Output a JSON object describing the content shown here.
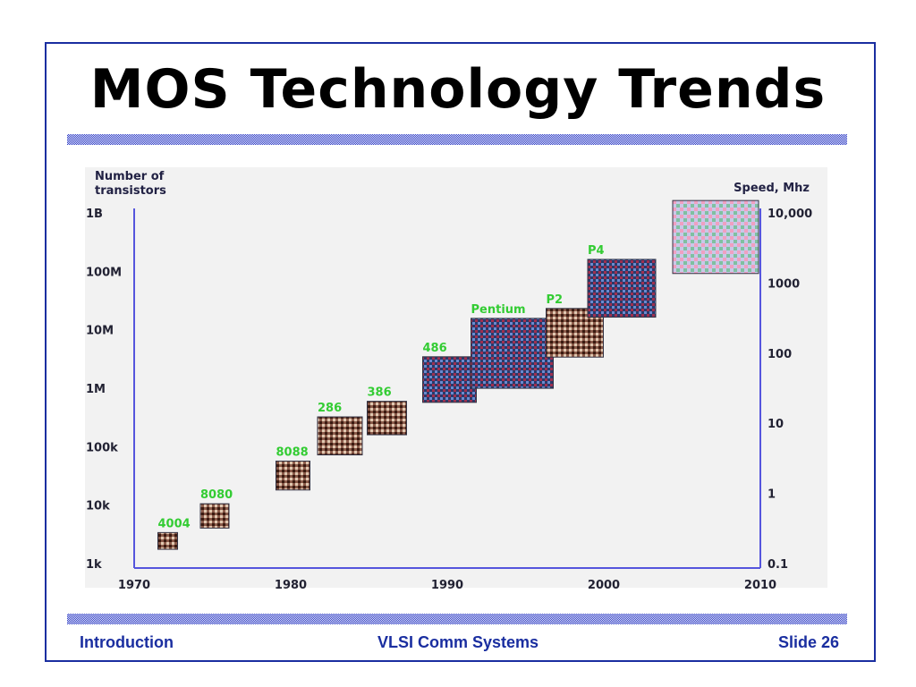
{
  "slide": {
    "title": "MOS Technology Trends",
    "footer_left": "Introduction",
    "footer_center": "VLSI Comm Systems",
    "footer_right": "Slide 26",
    "frame_color": "#1a2ea0",
    "footer_color": "#1a2ea0"
  },
  "chart_data": {
    "type": "scatter",
    "title": "",
    "xlabel": "",
    "ylabel": "Number of transistors",
    "y2label": "Speed, Mhz",
    "xlim": [
      1970,
      2010
    ],
    "x_ticks": [
      {
        "value": 1970,
        "label": "1970"
      },
      {
        "value": 1980,
        "label": "1980"
      },
      {
        "value": 1990,
        "label": "1990"
      },
      {
        "value": 2000,
        "label": "2000"
      },
      {
        "value": 2010,
        "label": "2010"
      }
    ],
    "y_scale": "log",
    "ylim": [
      1000,
      1000000000
    ],
    "y_ticks": [
      {
        "value": 1000,
        "label": "1k"
      },
      {
        "value": 10000,
        "label": "10k"
      },
      {
        "value": 100000,
        "label": "100k"
      },
      {
        "value": 1000000,
        "label": "1M"
      },
      {
        "value": 10000000,
        "label": "10M"
      },
      {
        "value": 100000000,
        "label": "100M"
      },
      {
        "value": 1000000000,
        "label": "1B"
      }
    ],
    "y2_scale": "log",
    "y2lim": [
      0.1,
      10000
    ],
    "y2_ticks": [
      {
        "value": 0.1,
        "label": "0.1"
      },
      {
        "value": 1,
        "label": "1"
      },
      {
        "value": 10,
        "label": "10"
      },
      {
        "value": 100,
        "label": "100"
      },
      {
        "value": 1000,
        "label": "1000"
      },
      {
        "value": 10000,
        "label": "10,000"
      }
    ],
    "grid": false,
    "axis_color": "#5555dd",
    "label_color": "#33cc33",
    "series": [
      {
        "points": [
          {
            "label": "4004",
            "year": 1971,
            "transistors": 2300
          },
          {
            "label": "8080",
            "year": 1974,
            "transistors": 6000
          },
          {
            "label": "8088",
            "year": 1979,
            "transistors": 29000
          },
          {
            "label": "286",
            "year": 1982,
            "transistors": 134000
          },
          {
            "label": "386",
            "year": 1985,
            "transistors": 275000
          },
          {
            "label": "486",
            "year": 1989,
            "transistors": 1200000
          },
          {
            "label": "Pentium",
            "year": 1993,
            "transistors": 3100000
          },
          {
            "label": "P2",
            "year": 1997,
            "transistors": 7500000
          },
          {
            "label": "P4",
            "year": 2000,
            "transistors": 42000000
          },
          {
            "label": "",
            "year": 2006,
            "transistors": 300000000
          }
        ]
      }
    ]
  }
}
